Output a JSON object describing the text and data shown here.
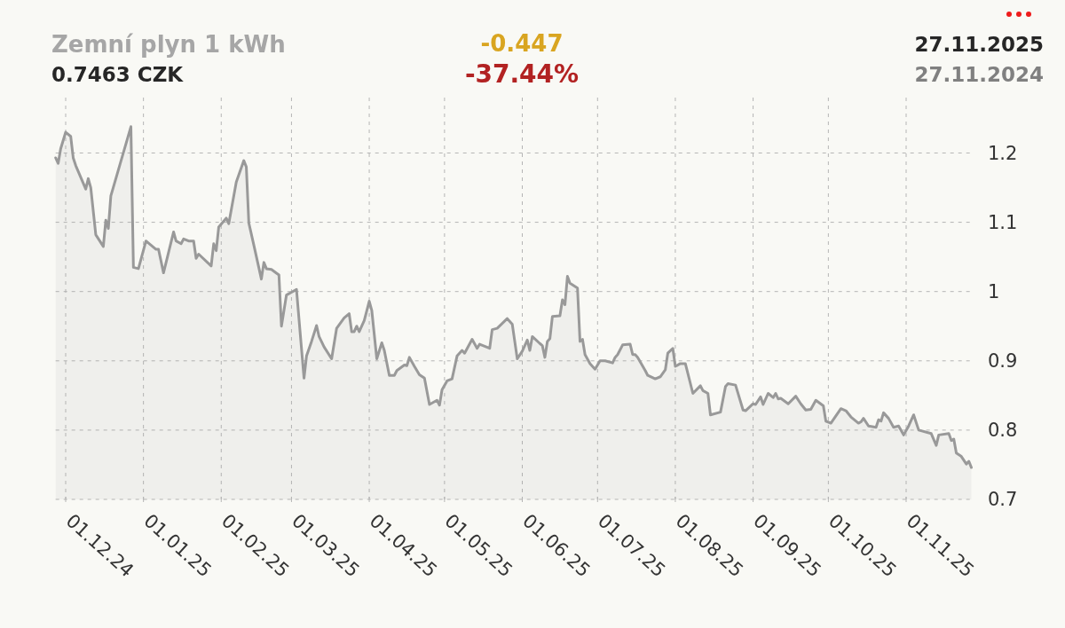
{
  "chart_data": {
    "type": "area",
    "title": "Zemní plyn 1 kWh",
    "subtitle": "0.7463 CZK",
    "annotations": [
      "-0.447",
      "-37.44%",
      "27.11.2025",
      "27.11.2024"
    ],
    "x": [
      "2024-11-27",
      "2024-11-28",
      "2024-11-29",
      "2024-12-01",
      "2024-12-03",
      "2024-12-04",
      "2024-12-05",
      "2024-12-09",
      "2024-12-10",
      "2024-12-11",
      "2024-12-13",
      "2024-12-16",
      "2024-12-17",
      "2024-12-18",
      "2024-12-19",
      "2024-12-27",
      "2024-12-28",
      "2024-12-30",
      "2025-01-02",
      "2025-01-04",
      "2025-01-06",
      "2025-01-07",
      "2025-01-09",
      "2025-01-13",
      "2025-01-14",
      "2025-01-16",
      "2025-01-17",
      "2025-01-19",
      "2025-01-21",
      "2025-01-22",
      "2025-01-23",
      "2025-01-28",
      "2025-01-29",
      "2025-01-30",
      "2025-01-31",
      "2025-02-03",
      "2025-02-04",
      "2025-02-07",
      "2025-02-10",
      "2025-02-11",
      "2025-02-12",
      "2025-02-14",
      "2025-02-17",
      "2025-02-18",
      "2025-02-19",
      "2025-02-21",
      "2025-02-24",
      "2025-02-25",
      "2025-02-27",
      "2025-03-01",
      "2025-03-03",
      "2025-03-06",
      "2025-03-07",
      "2025-03-09",
      "2025-03-11",
      "2025-03-12",
      "2025-03-14",
      "2025-03-17",
      "2025-03-19",
      "2025-03-22",
      "2025-03-24",
      "2025-03-25",
      "2025-03-26",
      "2025-03-27",
      "2025-03-28",
      "2025-03-30",
      "2025-04-01",
      "2025-04-02",
      "2025-04-04",
      "2025-04-06",
      "2025-04-07",
      "2025-04-09",
      "2025-04-11",
      "2025-04-12",
      "2025-04-15",
      "2025-04-16",
      "2025-04-17",
      "2025-04-19",
      "2025-04-21",
      "2025-04-23",
      "2025-04-25",
      "2025-04-28",
      "2025-04-29",
      "2025-04-30",
      "2025-05-02",
      "2025-05-04",
      "2025-05-06",
      "2025-05-08",
      "2025-05-09",
      "2025-05-12",
      "2025-05-14",
      "2025-05-15",
      "2025-05-19",
      "2025-05-20",
      "2025-05-22",
      "2025-05-26",
      "2025-05-28",
      "2025-05-30",
      "2025-06-01",
      "2025-06-03",
      "2025-06-04",
      "2025-06-05",
      "2025-06-08",
      "2025-06-09",
      "2025-06-10",
      "2025-06-11",
      "2025-06-12",
      "2025-06-13",
      "2025-06-16",
      "2025-06-17",
      "2025-06-18",
      "2025-06-19",
      "2025-06-20",
      "2025-06-23",
      "2025-06-24",
      "2025-06-25",
      "2025-06-26",
      "2025-06-28",
      "2025-06-30",
      "2025-07-02",
      "2025-07-04",
      "2025-07-07",
      "2025-07-08",
      "2025-07-09",
      "2025-07-11",
      "2025-07-14",
      "2025-07-15",
      "2025-07-16",
      "2025-07-17",
      "2025-07-20",
      "2025-07-21",
      "2025-07-24",
      "2025-07-26",
      "2025-07-28",
      "2025-07-29",
      "2025-07-31",
      "2025-08-01",
      "2025-08-03",
      "2025-08-05",
      "2025-08-08",
      "2025-08-11",
      "2025-08-12",
      "2025-08-14",
      "2025-08-15",
      "2025-08-19",
      "2025-08-21",
      "2025-08-22",
      "2025-08-25",
      "2025-08-28",
      "2025-08-29",
      "2025-09-01",
      "2025-09-02",
      "2025-09-04",
      "2025-09-05",
      "2025-09-07",
      "2025-09-09",
      "2025-09-10",
      "2025-09-11",
      "2025-09-12",
      "2025-09-15",
      "2025-09-18",
      "2025-09-20",
      "2025-09-22",
      "2025-09-24",
      "2025-09-26",
      "2025-09-29",
      "2025-09-30",
      "2025-10-02",
      "2025-10-06",
      "2025-10-08",
      "2025-10-10",
      "2025-10-13",
      "2025-10-14",
      "2025-10-15",
      "2025-10-17",
      "2025-10-20",
      "2025-10-21",
      "2025-10-22",
      "2025-10-23",
      "2025-10-25",
      "2025-10-27",
      "2025-10-29",
      "2025-10-31",
      "2025-11-02",
      "2025-11-04",
      "2025-11-06",
      "2025-11-11",
      "2025-11-13",
      "2025-11-14",
      "2025-11-18",
      "2025-11-19",
      "2025-11-20",
      "2025-11-21",
      "2025-11-23",
      "2025-11-25",
      "2025-11-26",
      "2025-11-27"
    ],
    "values": [
      1.193,
      1.185,
      1.206,
      1.23,
      1.224,
      1.193,
      1.182,
      1.148,
      1.163,
      1.15,
      1.082,
      1.065,
      1.103,
      1.091,
      1.138,
      1.238,
      1.035,
      1.033,
      1.073,
      1.067,
      1.061,
      1.061,
      1.027,
      1.086,
      1.073,
      1.069,
      1.076,
      1.073,
      1.073,
      1.048,
      1.054,
      1.037,
      1.069,
      1.059,
      1.093,
      1.106,
      1.098,
      1.158,
      1.189,
      1.18,
      1.099,
      1.067,
      1.018,
      1.042,
      1.033,
      1.032,
      1.024,
      0.95,
      0.995,
      0.999,
      1.003,
      0.875,
      0.907,
      0.928,
      0.951,
      0.935,
      0.92,
      0.903,
      0.947,
      0.962,
      0.968,
      0.942,
      0.942,
      0.95,
      0.942,
      0.958,
      0.986,
      0.973,
      0.903,
      0.926,
      0.915,
      0.879,
      0.879,
      0.886,
      0.894,
      0.893,
      0.905,
      0.892,
      0.88,
      0.875,
      0.837,
      0.843,
      0.836,
      0.858,
      0.871,
      0.874,
      0.907,
      0.915,
      0.911,
      0.931,
      0.918,
      0.924,
      0.918,
      0.945,
      0.947,
      0.961,
      0.953,
      0.903,
      0.914,
      0.93,
      0.915,
      0.935,
      0.925,
      0.922,
      0.905,
      0.928,
      0.932,
      0.964,
      0.965,
      0.988,
      0.981,
      1.022,
      1.012,
      1.005,
      0.928,
      0.931,
      0.909,
      0.896,
      0.888,
      0.9,
      0.9,
      0.897,
      0.905,
      0.909,
      0.923,
      0.924,
      0.909,
      0.909,
      0.905,
      0.886,
      0.879,
      0.874,
      0.877,
      0.887,
      0.911,
      0.918,
      0.892,
      0.896,
      0.896,
      0.853,
      0.864,
      0.857,
      0.853,
      0.822,
      0.826,
      0.863,
      0.867,
      0.865,
      0.829,
      0.828,
      0.838,
      0.837,
      0.848,
      0.837,
      0.853,
      0.847,
      0.853,
      0.845,
      0.846,
      0.838,
      0.849,
      0.838,
      0.829,
      0.83,
      0.843,
      0.835,
      0.813,
      0.81,
      0.831,
      0.828,
      0.819,
      0.81,
      0.812,
      0.817,
      0.806,
      0.804,
      0.815,
      0.813,
      0.825,
      0.817,
      0.804,
      0.806,
      0.793,
      0.806,
      0.822,
      0.8,
      0.795,
      0.778,
      0.793,
      0.795,
      0.785,
      0.787,
      0.767,
      0.762,
      0.751,
      0.755,
      0.746
    ],
    "color": "#999999",
    "line_style": "solid",
    "xlim": [
      "2024-11-27",
      "2025-11-27"
    ],
    "xticks": [
      {
        "value": "2024-12-01",
        "label": "01.12.24"
      },
      {
        "value": "2025-01-01",
        "label": "01.01.25"
      },
      {
        "value": "2025-02-01",
        "label": "01.02.25"
      },
      {
        "value": "2025-03-01",
        "label": "01.03.25"
      },
      {
        "value": "2025-04-01",
        "label": "01.04.25"
      },
      {
        "value": "2025-05-01",
        "label": "01.05.25"
      },
      {
        "value": "2025-06-01",
        "label": "01.06.25"
      },
      {
        "value": "2025-07-01",
        "label": "01.07.25"
      },
      {
        "value": "2025-08-01",
        "label": "01.08.25"
      },
      {
        "value": "2025-09-01",
        "label": "01.09.25"
      },
      {
        "value": "2025-10-01",
        "label": "01.10.25"
      },
      {
        "value": "2025-11-01",
        "label": "01.11.25"
      }
    ],
    "ylim": [
      0.7,
      1.28
    ],
    "yticks": [
      0.7,
      0.8,
      0.9,
      1,
      1.1,
      1.2
    ],
    "grid": true
  }
}
